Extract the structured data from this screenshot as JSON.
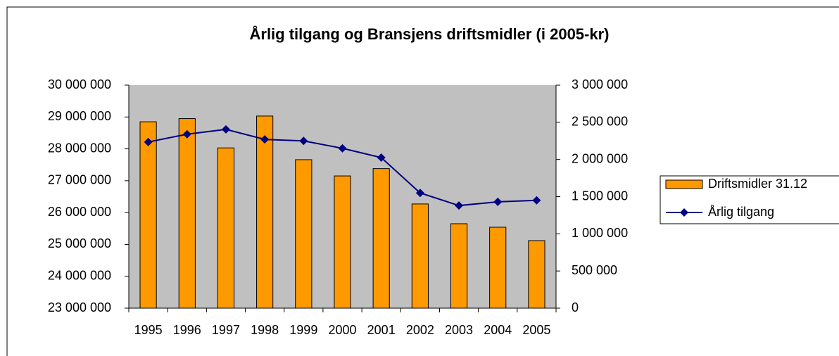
{
  "chart_data": {
    "type": "bar_line",
    "title": "Årlig tilgang og Bransjens driftsmidler (i 2005-kr)",
    "categories": [
      "1995",
      "1996",
      "1997",
      "1998",
      "1999",
      "2000",
      "2001",
      "2002",
      "2003",
      "2004",
      "2005"
    ],
    "series": [
      {
        "name": "Driftsmidler 31.12",
        "type": "bar",
        "color": "#ff9900",
        "values": [
          28850000,
          28950000,
          28030000,
          29030000,
          27660000,
          27150000,
          27380000,
          26270000,
          25650000,
          25540000,
          25120000
        ]
      },
      {
        "name": "Årlig tilgang",
        "type": "line",
        "color": "#000080",
        "axis": "y2",
        "values": [
          2235000,
          2340000,
          2405000,
          2270000,
          2250000,
          2150000,
          2025000,
          1550000,
          1380000,
          1430000,
          1450000
        ]
      }
    ],
    "ylim": [
      23000000,
      30000000
    ],
    "yticks": [
      {
        "value": 23000000,
        "label": "23 000 000"
      },
      {
        "value": 24000000,
        "label": "24 000 000"
      },
      {
        "value": 25000000,
        "label": "25 000 000"
      },
      {
        "value": 26000000,
        "label": "26 000 000"
      },
      {
        "value": 27000000,
        "label": "27 000 000"
      },
      {
        "value": 28000000,
        "label": "28 000 000"
      },
      {
        "value": 29000000,
        "label": "29 000 000"
      },
      {
        "value": 30000000,
        "label": "30 000 000"
      }
    ],
    "y2lim": [
      0,
      3000000
    ],
    "y2ticks": [
      0,
      {
        "value": 500000,
        "label": "500 000"
      },
      {
        "value": 1000000,
        "label": "1 000 000"
      },
      {
        "value": 1500000,
        "label": "1 500 000"
      },
      {
        "value": 2000000,
        "label": "2 000 000"
      },
      {
        "value": 2500000,
        "label": "2 500 000"
      },
      {
        "value": 3000000,
        "label": "3 000 000"
      }
    ],
    "plot_background": "#c0c0c0",
    "legend": "right"
  }
}
